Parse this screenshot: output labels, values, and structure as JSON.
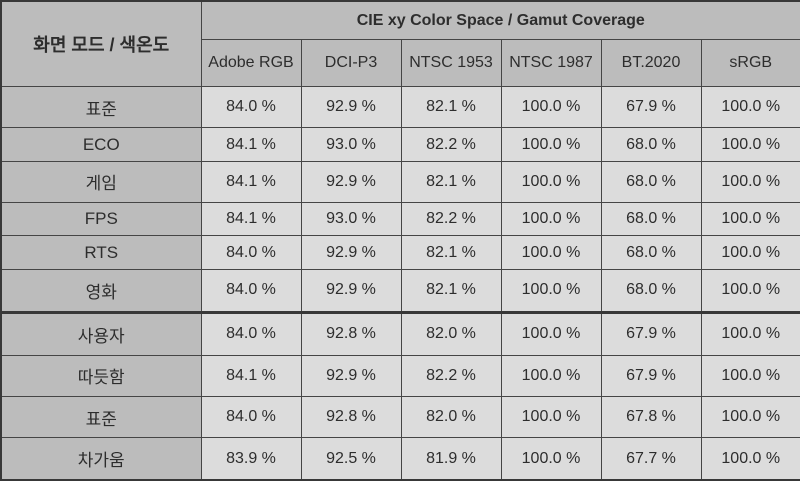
{
  "table": {
    "corner_header": "화면 모드 / 색온도",
    "group_header": "CIE xy Color Space / Gamut Coverage",
    "columns": [
      "Adobe RGB",
      "DCI-P3",
      "NTSC 1953",
      "NTSC 1987",
      "BT.2020",
      "sRGB"
    ],
    "rows": [
      {
        "label": "표준",
        "section_start": false,
        "values": [
          "84.0 %",
          "92.9 %",
          "82.1 %",
          "100.0 %",
          "67.9 %",
          "100.0 %"
        ]
      },
      {
        "label": "ECO",
        "section_start": false,
        "values": [
          "84.1 %",
          "93.0 %",
          "82.2 %",
          "100.0 %",
          "68.0 %",
          "100.0 %"
        ]
      },
      {
        "label": "게임",
        "section_start": false,
        "values": [
          "84.1 %",
          "92.9 %",
          "82.1 %",
          "100.0 %",
          "68.0 %",
          "100.0 %"
        ]
      },
      {
        "label": "FPS",
        "section_start": false,
        "values": [
          "84.1 %",
          "93.0 %",
          "82.2 %",
          "100.0 %",
          "68.0 %",
          "100.0 %"
        ]
      },
      {
        "label": "RTS",
        "section_start": false,
        "values": [
          "84.0 %",
          "92.9 %",
          "82.1 %",
          "100.0 %",
          "68.0 %",
          "100.0 %"
        ]
      },
      {
        "label": "영화",
        "section_start": false,
        "values": [
          "84.0 %",
          "92.9 %",
          "82.1 %",
          "100.0 %",
          "68.0 %",
          "100.0 %"
        ]
      },
      {
        "label": "사용자",
        "section_start": true,
        "values": [
          "84.0 %",
          "92.8 %",
          "82.0 %",
          "100.0 %",
          "67.9 %",
          "100.0 %"
        ]
      },
      {
        "label": "따듯함",
        "section_start": false,
        "values": [
          "84.1 %",
          "92.9 %",
          "82.2 %",
          "100.0 %",
          "67.9 %",
          "100.0 %"
        ]
      },
      {
        "label": "표준",
        "section_start": false,
        "values": [
          "84.0 %",
          "92.8 %",
          "82.0 %",
          "100.0 %",
          "67.8 %",
          "100.0 %"
        ]
      },
      {
        "label": "차가움",
        "section_start": false,
        "values": [
          "83.9 %",
          "92.5 %",
          "81.9 %",
          "100.0 %",
          "67.7 %",
          "100.0 %"
        ]
      }
    ],
    "colors": {
      "header_bg": "#bcbcbc",
      "cell_bg": "#dcdcdc",
      "border": "#454545",
      "outer_border": "#383838",
      "text": "#2d2d2d"
    }
  },
  "chart_data": {
    "type": "table",
    "title": "CIE xy Color Space / Gamut Coverage",
    "row_header": "화면 모드 / 색온도",
    "columns": [
      "Adobe RGB",
      "DCI-P3",
      "NTSC 1953",
      "NTSC 1987",
      "BT.2020",
      "sRGB"
    ],
    "row_groups": [
      {
        "name": "화면 모드",
        "rows": [
          "표준",
          "ECO",
          "게임",
          "FPS",
          "RTS",
          "영화"
        ]
      },
      {
        "name": "색온도",
        "rows": [
          "사용자",
          "따듯함",
          "표준",
          "차가움"
        ]
      }
    ],
    "values_percent": [
      [
        84.0,
        92.9,
        82.1,
        100.0,
        67.9,
        100.0
      ],
      [
        84.1,
        93.0,
        82.2,
        100.0,
        68.0,
        100.0
      ],
      [
        84.1,
        92.9,
        82.1,
        100.0,
        68.0,
        100.0
      ],
      [
        84.1,
        93.0,
        82.2,
        100.0,
        68.0,
        100.0
      ],
      [
        84.0,
        92.9,
        82.1,
        100.0,
        68.0,
        100.0
      ],
      [
        84.0,
        92.9,
        82.1,
        100.0,
        68.0,
        100.0
      ],
      [
        84.0,
        92.8,
        82.0,
        100.0,
        67.9,
        100.0
      ],
      [
        84.1,
        92.9,
        82.2,
        100.0,
        67.9,
        100.0
      ],
      [
        84.0,
        92.8,
        82.0,
        100.0,
        67.8,
        100.0
      ],
      [
        83.9,
        92.5,
        81.9,
        100.0,
        67.7,
        100.0
      ]
    ],
    "unit": "%"
  }
}
